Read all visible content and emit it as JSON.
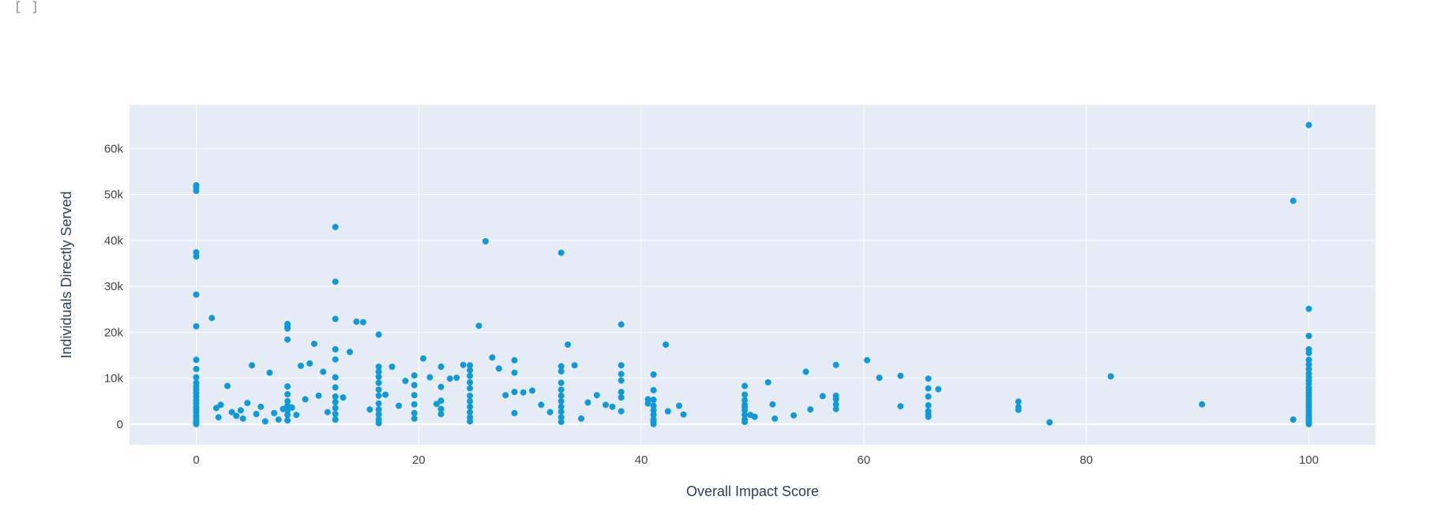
{
  "cell_prompt": "[ ]",
  "colors": {
    "plot_bg": "#E5ECF6",
    "grid": "#ffffff",
    "marker": "#0e9ad8"
  },
  "chart_data": {
    "type": "scatter",
    "xlabel": "Overall Impact Score",
    "ylabel": "Individuals Directly Served",
    "xlim": [
      -6,
      106
    ],
    "ylim": [
      -4500,
      69500
    ],
    "xticks": [
      0,
      20,
      40,
      60,
      80,
      100
    ],
    "xtick_labels": [
      "0",
      "20",
      "40",
      "60",
      "80",
      "100"
    ],
    "yticks": [
      0,
      10000,
      20000,
      30000,
      40000,
      50000,
      60000
    ],
    "ytick_labels": [
      "0",
      "10k",
      "20k",
      "30k",
      "40k",
      "50k",
      "60k"
    ],
    "grid": true,
    "legend": false,
    "x": [
      0,
      0,
      0,
      0,
      0,
      0,
      0,
      0,
      0,
      0,
      0,
      0,
      0,
      0,
      0,
      0,
      0,
      0,
      0,
      0,
      0,
      0,
      0,
      0,
      0,
      0,
      1.4,
      1.8,
      2.0,
      2.2,
      2.8,
      3.2,
      3.6,
      4.0,
      4.2,
      4.6,
      5.0,
      5.4,
      5.8,
      6.2,
      6.6,
      7.0,
      7.4,
      7.8,
      8.2,
      8.2,
      8.2,
      8.2,
      8.2,
      8.2,
      8.2,
      8.2,
      8.2,
      8.2,
      8.2,
      8.6,
      9.0,
      9.4,
      9.8,
      10.2,
      10.6,
      11.0,
      11.4,
      11.8,
      12.5,
      12.5,
      12.5,
      12.5,
      12.5,
      12.5,
      12.5,
      12.5,
      12.5,
      12.5,
      12.5,
      12.5,
      13.2,
      13.8,
      14.4,
      15.0,
      15.6,
      16.4,
      16.4,
      16.4,
      16.4,
      16.4,
      16.4,
      16.4,
      16.4,
      16.4,
      16.4,
      16.4,
      16.4,
      17.0,
      17.6,
      18.2,
      18.8,
      19.6,
      19.6,
      19.6,
      19.6,
      19.6,
      19.6,
      20.4,
      21.0,
      21.6,
      22.0,
      22.0,
      22.0,
      22.0,
      22.0,
      22.8,
      23.4,
      24.0,
      24.6,
      24.6,
      24.6,
      24.6,
      24.6,
      24.6,
      24.6,
      24.6,
      24.6,
      24.6,
      24.6,
      25.4,
      26.0,
      26.6,
      27.2,
      27.8,
      28.6,
      28.6,
      28.6,
      28.6,
      29.4,
      30.2,
      31.0,
      31.8,
      32.8,
      32.8,
      32.8,
      32.8,
      32.8,
      32.8,
      32.8,
      32.8,
      32.8,
      32.8,
      32.8,
      33.4,
      34.0,
      34.6,
      35.2,
      36.0,
      36.8,
      37.4,
      38.2,
      38.2,
      38.2,
      38.2,
      38.2,
      38.2,
      38.2,
      40.6,
      40.6,
      41.1,
      41.1,
      41.1,
      41.1,
      41.1,
      41.1,
      41.1,
      41.1,
      41.1,
      42.2,
      42.4,
      43.4,
      43.8,
      49.3,
      49.3,
      49.3,
      49.3,
      49.3,
      49.3,
      49.3,
      49.3,
      49.3,
      49.8,
      50.2,
      51.4,
      51.8,
      52.0,
      53.7,
      54.8,
      55.2,
      56.3,
      57.5,
      57.5,
      57.5,
      57.5,
      57.5,
      60.3,
      61.4,
      63.3,
      63.3,
      65.8,
      65.8,
      65.8,
      65.8,
      65.8,
      65.8,
      65.8,
      66.7,
      73.9,
      73.9,
      73.9,
      76.7,
      82.2,
      90.4,
      98.6,
      98.6,
      100,
      100,
      100,
      100,
      100,
      100,
      100,
      100,
      100,
      100,
      100,
      100,
      100,
      100,
      100,
      100,
      100,
      100,
      100,
      100,
      100,
      100,
      100,
      100,
      100,
      100,
      100,
      100
    ],
    "y": [
      52000,
      51500,
      50800,
      37400,
      36500,
      28200,
      21300,
      14000,
      12000,
      10200,
      9000,
      8200,
      7500,
      6800,
      6000,
      5200,
      4500,
      3800,
      3200,
      2500,
      1800,
      1200,
      600,
      200,
      0,
      3000,
      23100,
      3500,
      1500,
      4200,
      8300,
      2600,
      1800,
      3000,
      1200,
      4600,
      12800,
      2200,
      3800,
      600,
      11200,
      2400,
      1000,
      3300,
      21800,
      21200,
      20800,
      18400,
      8200,
      6500,
      5000,
      4000,
      3000,
      2000,
      800,
      3600,
      2000,
      12700,
      5400,
      13200,
      17500,
      6200,
      11400,
      2600,
      42900,
      31000,
      22900,
      16300,
      14100,
      10200,
      8000,
      6000,
      4800,
      3500,
      2200,
      1000,
      5800,
      15700,
      22300,
      22200,
      3200,
      19500,
      12500,
      11400,
      10300,
      9000,
      7500,
      6200,
      4500,
      3200,
      2100,
      1000,
      200,
      6400,
      12500,
      4000,
      9400,
      10600,
      8500,
      6300,
      4300,
      2400,
      1200,
      14300,
      10200,
      4400,
      12500,
      8100,
      5100,
      3300,
      2200,
      9900,
      10100,
      12900,
      12800,
      11700,
      10500,
      9100,
      7800,
      6200,
      5000,
      3800,
      2600,
      1500,
      600,
      21400,
      39800,
      14500,
      12100,
      6300,
      13900,
      11200,
      7000,
      2400,
      6900,
      7300,
      4200,
      2600,
      37300,
      12600,
      11500,
      9000,
      7500,
      6200,
      5000,
      3800,
      2700,
      1500,
      500,
      17300,
      12800,
      1200,
      4700,
      6300,
      4200,
      3800,
      21700,
      10900,
      9500,
      7000,
      5800,
      2800,
      12800,
      4500,
      5400,
      10800,
      7400,
      5300,
      4000,
      3000,
      2000,
      1000,
      500,
      0,
      17300,
      2800,
      4000,
      2100,
      8300,
      6400,
      5200,
      4200,
      3800,
      3000,
      2000,
      1000,
      500,
      2000,
      1600,
      9100,
      4300,
      1200,
      1900,
      11400,
      3200,
      6100,
      12900,
      6200,
      5400,
      4300,
      3300,
      13900,
      10100,
      10500,
      3900,
      9900,
      7800,
      6000,
      4100,
      2800,
      2000,
      1600,
      7600,
      4900,
      3700,
      3100,
      400,
      10400,
      4300,
      48600,
      1000,
      65100,
      25100,
      19200,
      16300,
      15500,
      14000,
      13000,
      12000,
      11000,
      10200,
      9500,
      8800,
      8000,
      7400,
      6800,
      6200,
      5600,
      5000,
      4400,
      3800,
      3200,
      2600,
      2000,
      1500,
      1000,
      600,
      300,
      0
    ]
  }
}
